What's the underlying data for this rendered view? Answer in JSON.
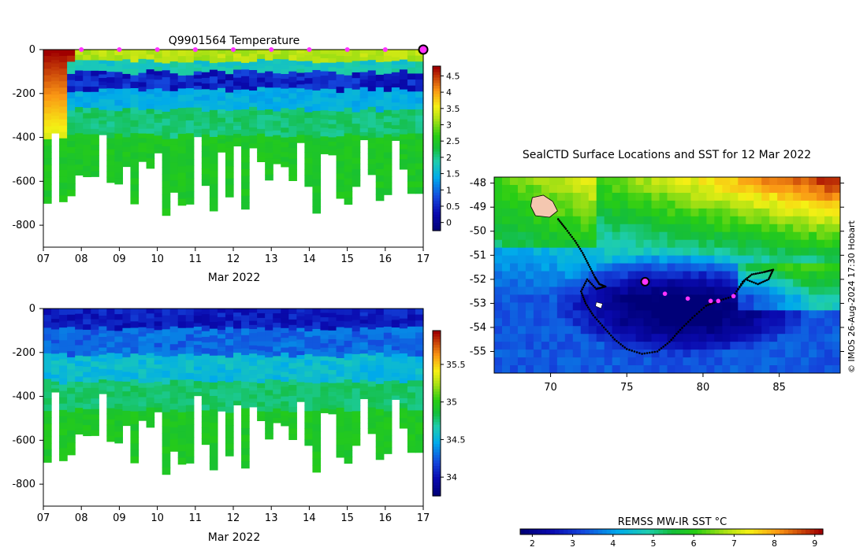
{
  "chart_data": [
    {
      "type": "heatmap",
      "title": "Q9901564  Temperature",
      "xlabel": "Mar 2022",
      "x_tick_labels": [
        "07",
        "08",
        "09",
        "10",
        "11",
        "12",
        "13",
        "14",
        "15",
        "16",
        "17"
      ],
      "x_ticks": [
        7,
        8,
        9,
        10,
        11,
        12,
        13,
        14,
        15,
        16,
        17
      ],
      "xlim": [
        7,
        17
      ],
      "ylim": [
        -900,
        0
      ],
      "y_ticks": [
        0,
        -200,
        -400,
        -600,
        -800
      ],
      "y_tick_labels": [
        "0",
        "-200",
        "-400",
        "-600",
        "-800"
      ],
      "colorbar": {
        "ticks": [
          0,
          0.5,
          1,
          1.5,
          2,
          2.5,
          3,
          3.5,
          4,
          4.5
        ],
        "tick_labels": [
          "0",
          "0.5",
          "1",
          "1.5",
          "2",
          "2.5",
          "3",
          "3.5",
          "4",
          "4.5"
        ],
        "range": [
          -0.25,
          4.8
        ]
      },
      "surface_markers_day": [
        8,
        9,
        10,
        11,
        12,
        13,
        14,
        15,
        16
      ],
      "current_marker_day": 17,
      "colors": {
        "marker": "#ff33ff"
      }
    },
    {
      "type": "heatmap",
      "title": "",
      "xlabel": "Mar 2022",
      "x_tick_labels": [
        "07",
        "08",
        "09",
        "10",
        "11",
        "12",
        "13",
        "14",
        "15",
        "16",
        "17"
      ],
      "x_ticks": [
        7,
        8,
        9,
        10,
        11,
        12,
        13,
        14,
        15,
        16,
        17
      ],
      "xlim": [
        7,
        17
      ],
      "ylim": [
        -900,
        0
      ],
      "y_ticks": [
        0,
        -200,
        -400,
        -600,
        -800
      ],
      "y_tick_labels": [
        "0",
        "-200",
        "-400",
        "-600",
        "-800"
      ],
      "colorbar": {
        "ticks": [
          34,
          34.5,
          35,
          35.5
        ],
        "tick_labels": [
          "34",
          "34.5",
          "35",
          "35.5"
        ],
        "range": [
          33.75,
          35.95
        ]
      }
    },
    {
      "type": "heatmap",
      "title": "SealCTD Surface Locations and SST for 12 Mar 2022",
      "xlabel": "",
      "ylabel": "",
      "xlim": [
        66.3,
        89
      ],
      "ylim": [
        -55.9,
        -47.75
      ],
      "x_ticks": [
        70,
        75,
        80,
        85
      ],
      "x_tick_labels": [
        "70",
        "75",
        "80",
        "85"
      ],
      "y_ticks": [
        -48,
        -49,
        -50,
        -51,
        -52,
        -53,
        -54,
        -55
      ],
      "y_tick_labels": [
        "-48",
        "-49",
        "-50",
        "-51",
        "-52",
        "-53",
        "-54",
        "-55"
      ],
      "colorbar_label": "REMSS MW-IR SST °C",
      "colorbar": {
        "ticks": [
          2,
          3,
          4,
          5,
          6,
          7,
          8,
          9
        ],
        "tick_labels": [
          "2",
          "3",
          "4",
          "5",
          "6",
          "7",
          "8",
          "9"
        ],
        "range": [
          1.7,
          9.2
        ]
      },
      "current_location": [
        76.2,
        -52.1
      ],
      "recent_locations": [
        [
          77.5,
          -52.6
        ],
        [
          79,
          -52.8
        ],
        [
          80.5,
          -52.9
        ],
        [
          81,
          -52.9
        ],
        [
          82,
          -52.7
        ]
      ],
      "credit": "© IMOS 26-Aug-2024 17:30 Hobart"
    }
  ]
}
